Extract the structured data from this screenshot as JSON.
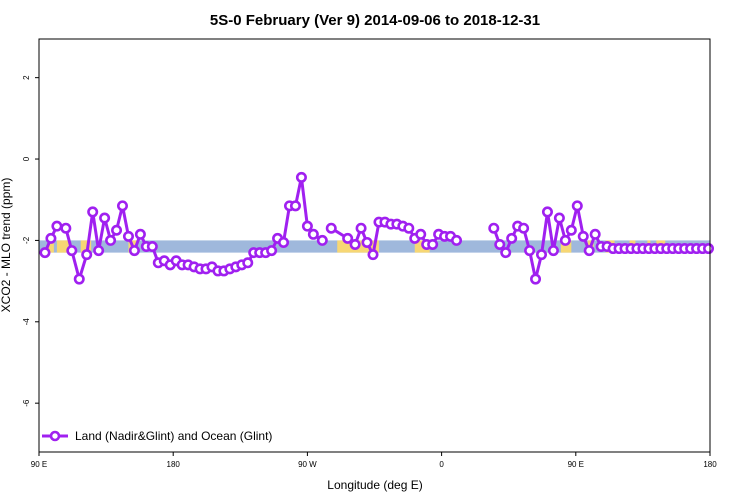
{
  "chart_data": {
    "type": "line",
    "title": "5S-0 February (Ver 9)   2014-09-06 to 2018-12-31",
    "xlabel": "Longitude (deg E)",
    "ylabel": "XCO2 - MLO trend (ppm)",
    "xlim": [
      90,
      540
    ],
    "ylim": [
      -7.2,
      2.95
    ],
    "x_ticks": [
      {
        "value": 90,
        "label": "90 E"
      },
      {
        "value": 180,
        "label": "180"
      },
      {
        "value": 270,
        "label": "90 W"
      },
      {
        "value": 360,
        "label": "0"
      },
      {
        "value": 450,
        "label": "90 E"
      },
      {
        "value": 540,
        "label": "180"
      }
    ],
    "y_ticks": [
      {
        "value": -6,
        "label": "-6"
      },
      {
        "value": -4,
        "label": "-4"
      },
      {
        "value": -2,
        "label": "-2"
      },
      {
        "value": 0,
        "label": "0"
      },
      {
        "value": 2,
        "label": "2"
      }
    ],
    "series": [
      {
        "name": "Land (Nadir&Glint) and Ocean (Glint)",
        "color": "#a020f0",
        "x": [
          94,
          98,
          102,
          108,
          112,
          117,
          122,
          126,
          130,
          134,
          138,
          142,
          146,
          150,
          154,
          158,
          162,
          166,
          170,
          174,
          178,
          182,
          186,
          190,
          194,
          198,
          202,
          206,
          210,
          214,
          218,
          222,
          226,
          230,
          234,
          238,
          242,
          246,
          250,
          254,
          258,
          262,
          266,
          270,
          274,
          280,
          286,
          297,
          302,
          306,
          310,
          314,
          318,
          322,
          326,
          330,
          334,
          338,
          342,
          346,
          350,
          354,
          358,
          362,
          366,
          370,
          395,
          399,
          403,
          407,
          411,
          415,
          419,
          423,
          427,
          431,
          435,
          439,
          443,
          447,
          451,
          455,
          459,
          463,
          467,
          471,
          475,
          479,
          483,
          487,
          491,
          495,
          499,
          503,
          507,
          511,
          515,
          519,
          523,
          527,
          531,
          535,
          539
        ],
        "y": [
          -2.3,
          -1.95,
          -1.65,
          -1.7,
          -2.25,
          -2.95,
          -2.35,
          -1.3,
          -2.25,
          -1.45,
          -2.0,
          -1.75,
          -1.15,
          -1.9,
          -2.25,
          -1.85,
          -2.15,
          -2.15,
          -2.55,
          -2.5,
          -2.6,
          -2.5,
          -2.6,
          -2.6,
          -2.65,
          -2.7,
          -2.7,
          -2.65,
          -2.75,
          -2.75,
          -2.7,
          -2.65,
          -2.6,
          -2.55,
          -2.3,
          -2.3,
          -2.3,
          -2.25,
          -1.95,
          -2.05,
          -1.15,
          -1.15,
          -0.45,
          -1.65,
          -1.85,
          -2.0,
          -1.7,
          -1.95,
          -2.1,
          -1.7,
          -2.05,
          -2.35,
          -1.55,
          -1.55,
          -1.6,
          -1.6,
          -1.65,
          -1.7,
          -1.95,
          -1.85,
          -2.1,
          -2.1,
          -1.85,
          -1.9,
          -1.9,
          -2.0,
          -1.7,
          -2.1,
          -2.3,
          -1.95,
          -1.65,
          -1.7,
          -2.25,
          -2.95,
          -2.35,
          -1.3,
          -2.25,
          -1.45,
          -2.0,
          -1.75,
          -1.15,
          -1.9,
          -2.25,
          -1.85,
          -2.15,
          -2.15,
          -2.2,
          -2.2,
          -2.2,
          -2.2,
          -2.2,
          -2.2,
          -2.2,
          -2.2,
          -2.2,
          -2.2,
          -2.2,
          -2.2,
          -2.2,
          -2.2,
          -2.2,
          -2.2,
          -2.2
        ],
        "segments_break_after_x": [
          280,
          370
        ]
      }
    ],
    "surface_band": {
      "y_range": [
        -2.3,
        -2.0
      ],
      "ocean_color": "#9fb8dc",
      "land_color": "#f7d774",
      "land_x_ranges": [
        [
          96,
          100
        ],
        [
          102,
          110
        ],
        [
          118,
          125
        ],
        [
          150,
          156
        ],
        [
          290,
          318
        ],
        [
          342,
          352
        ],
        [
          440,
          447
        ],
        [
          458,
          462
        ],
        [
          470,
          476
        ],
        [
          486,
          490
        ],
        [
          498,
          500
        ],
        [
          504,
          510
        ]
      ]
    },
    "legend": {
      "placement": "bottom-left"
    },
    "grid": false
  }
}
